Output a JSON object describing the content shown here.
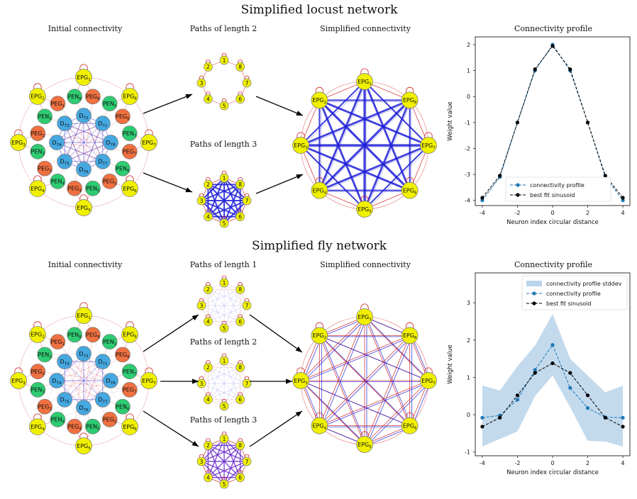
{
  "locust": {
    "title": "Simplified locust network",
    "initial_title": "Initial connectivity",
    "paths2_title": "Paths of length 2",
    "paths3_title": "Paths of length 3",
    "simplified_title": "Simplified connectivity",
    "profile_title": "Connectivity profile"
  },
  "fly": {
    "title": "Simplified fly network",
    "initial_title": "Initial connectivity",
    "paths1_title": "Paths of length 1",
    "paths2_title": "Paths of length 2",
    "paths3_title": "Paths of length 3",
    "simplified_title": "Simplified connectivity",
    "profile_title": "Connectivity profile"
  },
  "colors": {
    "epg": "#f0f000",
    "pen": "#2ecc71",
    "peg": "#f07040",
    "d7": "#45a8e0",
    "excitatory_edge": "#d02020",
    "inhibitory_edge": "#2020d8",
    "profile": "#1f77b4",
    "fit": "#000000",
    "stddev_band": "#b9d3ea"
  },
  "node_labels": {
    "epg_ring": [
      "EPG1",
      "EPG8",
      "EPG7",
      "EPG6",
      "EPG5",
      "EPG4",
      "EPG3",
      "EPG2"
    ],
    "small_ring": [
      "1",
      "8",
      "7",
      "6",
      "5",
      "4",
      "3",
      "2"
    ]
  },
  "chart_data": [
    {
      "type": "line",
      "title": "Connectivity profile",
      "xlabel": "Neuron index circular distance",
      "ylabel": "Weight value",
      "xlim": [
        -4.4,
        4.4
      ],
      "ylim": [
        -4.2,
        2.3
      ],
      "xticks": [
        -4,
        -2,
        0,
        2,
        4
      ],
      "yticks": [
        -4,
        -3,
        -2,
        -1,
        0,
        1,
        2
      ],
      "legend": "lower-center",
      "series": [
        {
          "name": "connectivity profile",
          "x": [
            -4,
            -3,
            -2,
            -1,
            0,
            1,
            2,
            3,
            4
          ],
          "y": [
            -4.0,
            -3.1,
            -1.0,
            1.0,
            2.0,
            1.0,
            -1.0,
            -3.1,
            -4.0
          ]
        },
        {
          "name": "best fit sinusoid",
          "x": [
            -4,
            -3,
            -2,
            -1,
            0,
            1,
            2,
            3,
            4
          ],
          "y": [
            -3.9,
            -3.05,
            -1.0,
            1.05,
            1.95,
            1.05,
            -1.0,
            -3.05,
            -3.9
          ]
        }
      ]
    },
    {
      "type": "line",
      "title": "Connectivity profile",
      "xlabel": "Neuron index circular distance",
      "ylabel": "Weight value",
      "xlim": [
        -4.4,
        4.4
      ],
      "ylim": [
        -1.1,
        3.8
      ],
      "xticks": [
        -4,
        -2,
        0,
        2,
        4
      ],
      "yticks": [
        -1,
        0,
        1,
        2,
        3
      ],
      "legend": "upper-right",
      "series": [
        {
          "name": "connectivity profile",
          "x": [
            -4,
            -3,
            -2,
            -1,
            0,
            1,
            2,
            3,
            4
          ],
          "y": [
            -0.08,
            -0.02,
            0.4,
            1.2,
            1.87,
            0.72,
            0.18,
            -0.07,
            -0.08
          ]
        },
        {
          "name": "connectivity profile stddev",
          "x": [
            -4,
            -3,
            -2,
            -1,
            0,
            1,
            2,
            3,
            4
          ],
          "lower": [
            -0.85,
            -0.65,
            -0.45,
            0.5,
            1.05,
            0.2,
            -0.7,
            -0.72,
            -0.85
          ],
          "upper": [
            0.78,
            0.65,
            1.3,
            1.85,
            2.7,
            1.5,
            1.05,
            0.6,
            0.78
          ]
        },
        {
          "name": "best fit sinusoid",
          "x": [
            -4,
            -3,
            -2,
            -1,
            0,
            1,
            2,
            3,
            4
          ],
          "y": [
            -0.32,
            -0.08,
            0.52,
            1.12,
            1.38,
            1.12,
            0.52,
            -0.08,
            -0.32
          ]
        }
      ]
    }
  ]
}
